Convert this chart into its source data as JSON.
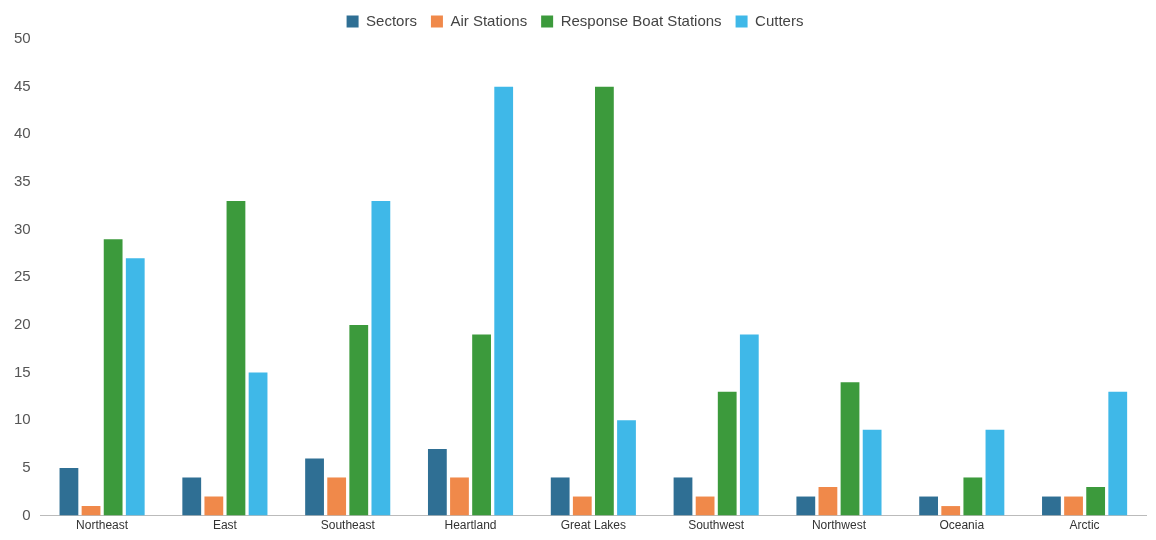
{
  "chart_data": {
    "type": "bar",
    "categories": [
      "Northeast",
      "East",
      "Southeast",
      "Heartland",
      "Great Lakes",
      "Southwest",
      "Northwest",
      "Oceania",
      "Arctic"
    ],
    "series": [
      {
        "name": "Sectors",
        "color": "#2f6f94",
        "values": [
          5,
          4,
          6,
          7,
          4,
          4,
          2,
          2,
          2
        ]
      },
      {
        "name": "Air Stations",
        "color": "#f0894a",
        "values": [
          1,
          2,
          4,
          4,
          2,
          2,
          3,
          1,
          2
        ]
      },
      {
        "name": "Response Boat Stations",
        "color": "#3c9a3c",
        "values": [
          29,
          33,
          20,
          19,
          45,
          13,
          14,
          4,
          3
        ]
      },
      {
        "name": "Cutters",
        "color": "#3fb8e8",
        "values": [
          27,
          15,
          33,
          45,
          10,
          19,
          9,
          9,
          13
        ]
      }
    ],
    "ylim": [
      0,
      50
    ],
    "yticks": [
      0,
      5,
      10,
      15,
      20,
      25,
      30,
      35,
      40,
      45,
      50
    ],
    "grid": false,
    "legend": "top"
  }
}
